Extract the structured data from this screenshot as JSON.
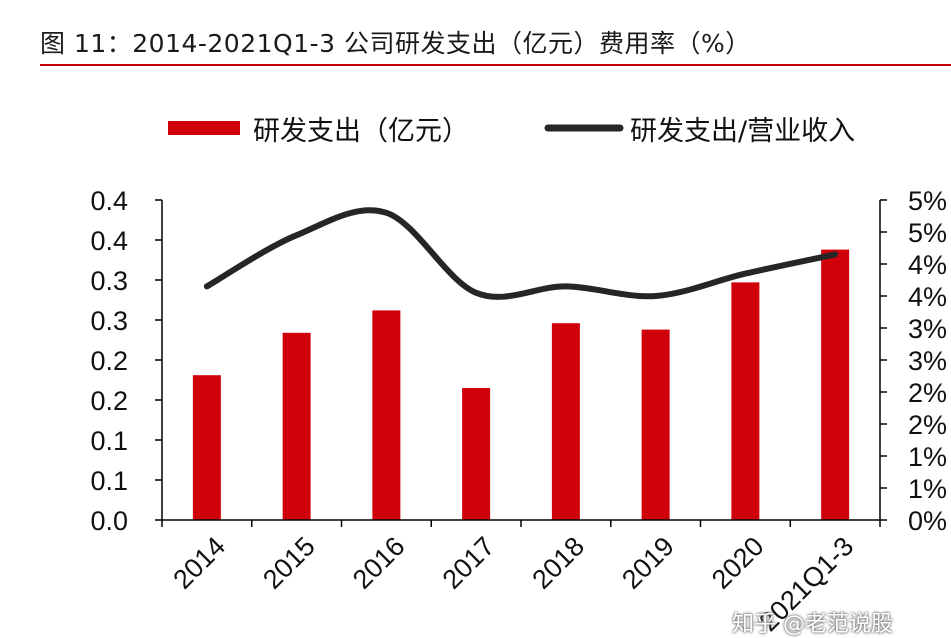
{
  "header": {
    "title": "图 11：2014-2021Q1-3 公司研发支出（亿元）费用率（%）"
  },
  "watermark": "知乎 @老范说股",
  "colors": {
    "accent": "#c00000",
    "bar": "#d0000b",
    "line": "#262626"
  },
  "chart_data": {
    "type": "bar",
    "categories": [
      "2014",
      "2015",
      "2016",
      "2017",
      "2018",
      "2019",
      "2020",
      "2021Q1-3"
    ],
    "series": [
      {
        "name": "研发支出（亿元）",
        "type": "bar",
        "axis": "left",
        "values": [
          0.181,
          0.234,
          0.262,
          0.165,
          0.246,
          0.238,
          0.297,
          0.338
        ]
      },
      {
        "name": "研发支出/营业收入",
        "type": "line",
        "axis": "right",
        "values": [
          3.65,
          4.45,
          4.8,
          3.55,
          3.65,
          3.5,
          3.85,
          4.15
        ]
      }
    ],
    "left_axis": {
      "ylim": [
        0,
        0.4
      ],
      "tick_labels": [
        "0.0",
        "0.1",
        "0.1",
        "0.2",
        "0.2",
        "0.3",
        "0.3",
        "0.4",
        "0.4"
      ]
    },
    "right_axis": {
      "ylim": [
        0,
        5
      ],
      "tick_labels": [
        "0%",
        "1%",
        "1%",
        "2%",
        "2%",
        "3%",
        "3%",
        "4%",
        "4%",
        "5%",
        "5%"
      ]
    },
    "legend_position": "top",
    "grid": false
  }
}
